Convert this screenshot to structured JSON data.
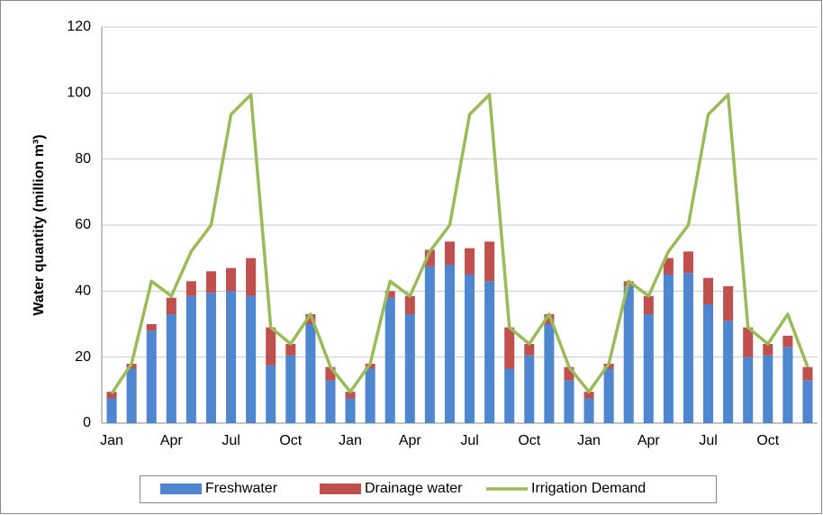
{
  "chart_data": {
    "type": "bar",
    "stacked": true,
    "y_label": "Water quantity (million m³)",
    "categories": [
      "Jan",
      null,
      null,
      "Apr",
      null,
      null,
      "Jul",
      null,
      null,
      "Oct",
      null,
      null,
      "Jan",
      null,
      null,
      "Apr",
      null,
      null,
      "Jul",
      null,
      null,
      "Oct",
      null,
      null,
      "Jan",
      null,
      null,
      "Apr",
      null,
      null,
      "Jul",
      null,
      null,
      "Oct",
      null,
      null
    ],
    "series": [
      {
        "name": "Freshwater",
        "type": "bar",
        "color": "#4f86d0",
        "values": [
          7.5,
          16.5,
          28,
          33,
          38.5,
          39.5,
          40,
          38.5,
          17.5,
          20.5,
          30,
          13,
          7.5,
          16.5,
          38,
          33,
          47.5,
          48,
          45,
          43,
          16.5,
          20.5,
          30,
          13,
          7.5,
          16.5,
          41.5,
          33,
          45,
          45.5,
          36,
          31,
          20,
          20.5,
          23,
          13
        ]
      },
      {
        "name": "Drainage water",
        "type": "bar",
        "color": "#c0504d",
        "values": [
          2,
          1.5,
          2,
          5,
          4.5,
          6.5,
          7,
          11.5,
          11.5,
          3.5,
          3,
          4,
          2,
          1.5,
          2,
          5.5,
          5,
          7,
          8,
          12,
          12.5,
          3.5,
          3,
          4,
          2,
          1.5,
          1.5,
          5.5,
          5,
          6.5,
          8,
          10.5,
          9,
          3.5,
          3.5,
          4
        ]
      },
      {
        "name": "Irrigation Demand",
        "type": "line",
        "color": "#9bbb59",
        "values": [
          9,
          18,
          43,
          38.5,
          52,
          60,
          93.5,
          99.5,
          29,
          24,
          33,
          17,
          9.5,
          18,
          43,
          38.5,
          52,
          60,
          93.5,
          99.5,
          29,
          24,
          33,
          17,
          9.5,
          18,
          43,
          38.5,
          52,
          60,
          93.5,
          99.5,
          29,
          24,
          33,
          17
        ]
      }
    ],
    "ylim": [
      0,
      120
    ],
    "yticks": [
      0,
      20,
      40,
      60,
      80,
      100,
      120
    ],
    "grid": true,
    "legend": "bottom"
  }
}
